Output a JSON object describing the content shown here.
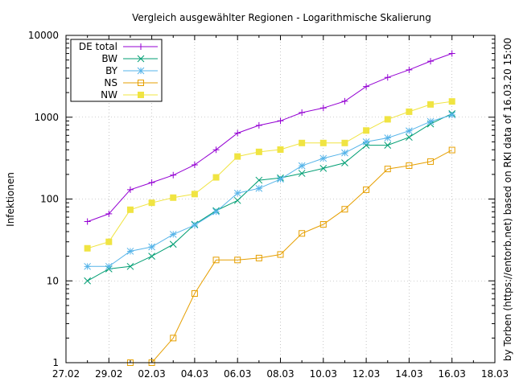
{
  "chart_data": {
    "type": "line",
    "title": "Vergleich ausgewählter Regionen - Logarithmische Skalierung",
    "ylabel": "Infektionen",
    "xlabel": "",
    "side_note": "by Torben (https://entorb.net) based on RKI data of 16.03.20 15:00",
    "y_scale": "log",
    "ylim": [
      1,
      10000
    ],
    "y_ticks": [
      "1",
      "10",
      "100",
      "1000",
      "10000"
    ],
    "x_ticks": [
      "27.02",
      "29.02",
      "02.03",
      "04.03",
      "06.03",
      "08.03",
      "10.03",
      "12.03",
      "14.03",
      "16.03",
      "18.03"
    ],
    "xlim": [
      "2020-02-27",
      "2020-03-18"
    ],
    "grid": true,
    "legend_position": "top-left",
    "x": [
      "2020-02-28",
      "2020-02-29",
      "2020-03-01",
      "2020-03-02",
      "2020-03-03",
      "2020-03-04",
      "2020-03-05",
      "2020-03-06",
      "2020-03-07",
      "2020-03-08",
      "2020-03-09",
      "2020-03-10",
      "2020-03-11",
      "2020-03-12",
      "2020-03-13",
      "2020-03-14",
      "2020-03-15",
      "2020-03-16",
      "2020-03-17"
    ],
    "series": [
      {
        "name": "DE total",
        "color": "#9400d3",
        "marker": "plus",
        "values": [
          53,
          66,
          130,
          159,
          196,
          262,
          400,
          639,
          795,
          902,
          1139,
          1296,
          1567,
          2369,
          3062,
          3795,
          4838,
          6012,
          null
        ]
      },
      {
        "name": "BW",
        "color": "#009e73",
        "marker": "cross",
        "values": [
          10,
          14,
          15,
          20,
          28,
          49,
          72,
          96,
          170,
          181,
          206,
          237,
          277,
          454,
          454,
          569,
          827,
          1105,
          null
        ]
      },
      {
        "name": "BY",
        "color": "#56b4e9",
        "marker": "star",
        "values": [
          15,
          15,
          23,
          26,
          37,
          48,
          70,
          118,
          135,
          175,
          255,
          314,
          366,
          500,
          558,
          681,
          886,
          1067,
          null
        ]
      },
      {
        "name": "NS",
        "color": "#e69f00",
        "marker": "open-square",
        "values": [
          null,
          null,
          1,
          1,
          2,
          7,
          18,
          18,
          19,
          21,
          38,
          49,
          75,
          130,
          233,
          256,
          287,
          397,
          null
        ]
      },
      {
        "name": "NW",
        "color": "#f0e442",
        "marker": "filled-square",
        "values": [
          25,
          30,
          74,
          90,
          104,
          115,
          184,
          331,
          377,
          402,
          484,
          484,
          484,
          688,
          942,
          1167,
          1433,
          1558,
          null
        ]
      }
    ]
  }
}
